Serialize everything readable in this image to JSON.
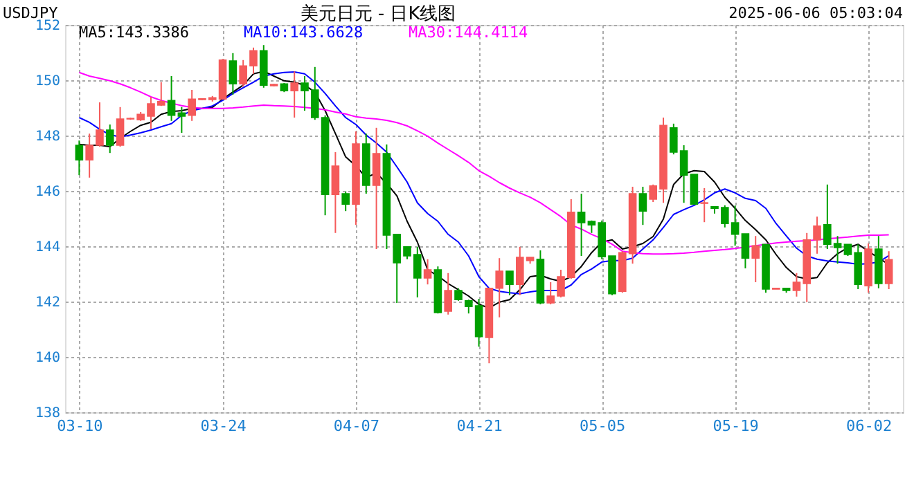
{
  "chart_data": {
    "type": "candlestick",
    "title": "USDJPY",
    "subtitle": "美元日元 - 日K线图",
    "annotations": [
      "2025-06-06 05:03:04"
    ],
    "categories": [
      "03-10",
      null,
      null,
      null,
      null,
      null,
      null,
      null,
      null,
      null,
      null,
      null,
      null,
      null,
      "03-24",
      null,
      null,
      null,
      null,
      null,
      null,
      null,
      null,
      null,
      null,
      null,
      null,
      "04-07",
      null,
      null,
      null,
      null,
      null,
      null,
      null,
      null,
      null,
      null,
      null,
      "04-21",
      null,
      null,
      null,
      null,
      null,
      null,
      null,
      null,
      null,
      null,
      null,
      "05-05",
      null,
      null,
      null,
      null,
      null,
      null,
      null,
      null,
      null,
      null,
      null,
      null,
      "05-19",
      null,
      null,
      null,
      null,
      null,
      null,
      null,
      null,
      null,
      null,
      null,
      null,
      "06-02",
      null,
      null
    ],
    "ohlc": [
      [
        147.65,
        147.82,
        146.57,
        147.12
      ],
      [
        147.12,
        148.07,
        146.48,
        147.65
      ],
      [
        147.65,
        149.2,
        147.6,
        148.2
      ],
      [
        148.2,
        148.4,
        147.37,
        147.65
      ],
      [
        147.65,
        149.03,
        147.6,
        148.6
      ],
      [
        148.6,
        148.65,
        148.57,
        148.62
      ],
      [
        148.57,
        148.85,
        148.53,
        148.77
      ],
      [
        148.7,
        149.4,
        148.23,
        149.15
      ],
      [
        149.1,
        149.93,
        149.07,
        149.23
      ],
      [
        149.27,
        150.15,
        148.53,
        148.73
      ],
      [
        148.82,
        149.03,
        148.1,
        148.7
      ],
      [
        148.73,
        149.65,
        148.53,
        149.32
      ],
      [
        149.3,
        149.35,
        149.28,
        149.33
      ],
      [
        149.3,
        149.43,
        149.23,
        149.37
      ],
      [
        149.32,
        150.77,
        149.3,
        150.73
      ],
      [
        150.7,
        150.98,
        149.48,
        149.87
      ],
      [
        149.87,
        150.73,
        149.77,
        150.52
      ],
      [
        150.52,
        151.18,
        150.23,
        151.07
      ],
      [
        151.07,
        151.27,
        149.73,
        149.82
      ],
      [
        149.8,
        149.87,
        149.78,
        149.85
      ],
      [
        149.87,
        149.9,
        149.57,
        149.62
      ],
      [
        149.62,
        150.32,
        148.65,
        149.9
      ],
      [
        149.9,
        150.15,
        148.9,
        149.62
      ],
      [
        149.65,
        150.48,
        148.57,
        148.65
      ],
      [
        148.65,
        148.73,
        145.12,
        145.87
      ],
      [
        145.87,
        147.4,
        144.48,
        146.9
      ],
      [
        145.9,
        145.98,
        145.27,
        145.52
      ],
      [
        145.52,
        148.15,
        144.77,
        147.7
      ],
      [
        147.7,
        148.07,
        145.9,
        146.2
      ],
      [
        146.2,
        148.28,
        143.9,
        147.35
      ],
      [
        147.35,
        147.68,
        143.9,
        144.4
      ],
      [
        144.43,
        144.43,
        141.95,
        143.4
      ],
      [
        143.98,
        143.98,
        143.53,
        143.65
      ],
      [
        143.7,
        143.98,
        142.15,
        142.85
      ],
      [
        142.85,
        143.53,
        142.62,
        143.15
      ],
      [
        143.15,
        143.27,
        141.57,
        141.6
      ],
      [
        141.65,
        143.03,
        141.53,
        142.4
      ],
      [
        142.4,
        142.48,
        142.03,
        142.07
      ],
      [
        142.03,
        142.07,
        141.57,
        141.82
      ],
      [
        141.85,
        142.1,
        140.37,
        140.73
      ],
      [
        140.7,
        142.48,
        139.77,
        142.48
      ],
      [
        142.48,
        143.57,
        141.43,
        143.1
      ],
      [
        143.1,
        143.1,
        142.23,
        142.62
      ],
      [
        142.62,
        143.98,
        142.23,
        143.6
      ],
      [
        143.48,
        143.6,
        143.37,
        143.6
      ],
      [
        143.53,
        143.85,
        141.9,
        141.95
      ],
      [
        141.95,
        142.7,
        141.9,
        142.2
      ],
      [
        142.2,
        143.15,
        142.15,
        142.9
      ],
      [
        142.87,
        145.7,
        142.82,
        145.23
      ],
      [
        145.23,
        145.9,
        143.65,
        144.85
      ],
      [
        144.9,
        144.93,
        144.48,
        144.77
      ],
      [
        144.85,
        144.93,
        143.53,
        143.62
      ],
      [
        143.65,
        143.65,
        142.23,
        142.28
      ],
      [
        142.37,
        143.82,
        142.32,
        143.77
      ],
      [
        143.73,
        146.15,
        143.37,
        145.9
      ],
      [
        145.9,
        146.15,
        144.77,
        145.27
      ],
      [
        145.7,
        146.23,
        145.6,
        146.18
      ],
      [
        146.07,
        148.65,
        145.57,
        148.37
      ],
      [
        148.28,
        148.43,
        147.32,
        147.4
      ],
      [
        147.45,
        147.65,
        145.57,
        146.57
      ],
      [
        146.6,
        146.6,
        145.52,
        145.52
      ],
      [
        145.55,
        146.1,
        144.87,
        145.57
      ],
      [
        145.43,
        145.43,
        145.18,
        145.37
      ],
      [
        145.4,
        145.48,
        144.68,
        144.82
      ],
      [
        144.85,
        145.47,
        144.02,
        144.43
      ],
      [
        144.45,
        144.45,
        143.2,
        143.57
      ],
      [
        143.57,
        144.37,
        142.7,
        144.02
      ],
      [
        144.07,
        144.07,
        142.32,
        142.45
      ],
      [
        142.45,
        142.48,
        142.45,
        142.48
      ],
      [
        142.48,
        142.48,
        142.32,
        142.4
      ],
      [
        142.4,
        143.03,
        142.18,
        142.7
      ],
      [
        142.65,
        144.48,
        141.98,
        144.23
      ],
      [
        144.23,
        145.07,
        143.73,
        144.73
      ],
      [
        144.78,
        146.23,
        143.9,
        144.07
      ],
      [
        144.1,
        144.37,
        143.37,
        143.95
      ],
      [
        144.07,
        144.07,
        143.65,
        143.7
      ],
      [
        143.77,
        144.07,
        142.45,
        142.62
      ],
      [
        142.57,
        144.1,
        142.32,
        143.9
      ],
      [
        143.9,
        144.37,
        142.48,
        142.65
      ],
      [
        142.65,
        143.82,
        142.45,
        143.52
      ]
    ],
    "colors": [
      "#00a000",
      "#f55a5a",
      "#f55a5a",
      "#00a000",
      "#f55a5a",
      "#f55a5a",
      "#f55a5a",
      "#f55a5a",
      "#f55a5a",
      "#00a000",
      "#00a000",
      "#f55a5a",
      "#f55a5a",
      "#f55a5a",
      "#f55a5a",
      "#00a000",
      "#f55a5a",
      "#f55a5a",
      "#00a000",
      "#f55a5a",
      "#00a000",
      "#f55a5a",
      "#00a000",
      "#00a000",
      "#00a000",
      "#f55a5a",
      "#00a000",
      "#f55a5a",
      "#00a000",
      "#f55a5a",
      "#00a000",
      "#00a000",
      "#00a000",
      "#00a000",
      "#f55a5a",
      "#00a000",
      "#f55a5a",
      "#00a000",
      "#00a000",
      "#00a000",
      "#f55a5a",
      "#f55a5a",
      "#00a000",
      "#f55a5a",
      "#f55a5a",
      "#00a000",
      "#f55a5a",
      "#f55a5a",
      "#f55a5a",
      "#00a000",
      "#00a000",
      "#00a000",
      "#00a000",
      "#f55a5a",
      "#f55a5a",
      "#00a000",
      "#f55a5a",
      "#f55a5a",
      "#00a000",
      "#00a000",
      "#00a000",
      "#f55a5a",
      "#00a000",
      "#00a000",
      "#00a000",
      "#00a000",
      "#f55a5a",
      "#00a000",
      "#f55a5a",
      "#00a000",
      "#f55a5a",
      "#f55a5a",
      "#f55a5a",
      "#00a000",
      "#00a000",
      "#00a000",
      "#00a000",
      "#f55a5a",
      "#00a000",
      "#f55a5a"
    ],
    "series": [
      {
        "name": "MA5:143.3386",
        "type": "line",
        "color": "#000000",
        "values": [
          147.68,
          147.65,
          147.65,
          147.6,
          147.9,
          148.15,
          148.37,
          148.48,
          148.77,
          148.87,
          148.9,
          148.98,
          148.98,
          149.02,
          149.32,
          149.57,
          149.82,
          150.23,
          150.32,
          150.15,
          149.98,
          149.93,
          149.82,
          149.57,
          148.9,
          148.07,
          147.23,
          146.9,
          146.48,
          146.65,
          146.27,
          145.82,
          144.9,
          144.15,
          143.15,
          142.93,
          142.65,
          142.43,
          142.2,
          141.9,
          141.77,
          141.98,
          142.07,
          142.43,
          142.9,
          142.95,
          142.82,
          142.73,
          142.9,
          143.27,
          143.77,
          144.15,
          144.23,
          143.9,
          143.98,
          144.1,
          144.35,
          144.98,
          146.23,
          146.62,
          146.73,
          146.7,
          146.32,
          145.77,
          145.37,
          144.93,
          144.6,
          144.23,
          143.7,
          143.23,
          142.9,
          142.82,
          142.87,
          143.4,
          143.73,
          143.95,
          144.07,
          143.82,
          143.57,
          143.34
        ]
      },
      {
        "name": "MA10:143.6628",
        "type": "line",
        "color": "#0000ff",
        "values": [
          148.65,
          148.48,
          148.23,
          148.03,
          147.95,
          148.02,
          148.1,
          148.2,
          148.32,
          148.43,
          148.73,
          148.9,
          148.98,
          149.07,
          149.27,
          149.52,
          149.73,
          149.93,
          150.15,
          150.23,
          150.28,
          150.3,
          150.23,
          149.93,
          149.52,
          149.07,
          148.65,
          148.4,
          148.02,
          147.73,
          147.4,
          146.87,
          146.32,
          145.57,
          145.18,
          144.9,
          144.43,
          144.15,
          143.65,
          142.9,
          142.48,
          142.37,
          142.32,
          142.28,
          142.35,
          142.4,
          142.4,
          142.4,
          142.6,
          142.98,
          143.18,
          143.43,
          143.48,
          143.48,
          143.57,
          143.9,
          144.23,
          144.68,
          145.15,
          145.32,
          145.48,
          145.68,
          145.93,
          146.07,
          145.93,
          145.73,
          145.65,
          145.37,
          144.82,
          144.37,
          143.93,
          143.65,
          143.53,
          143.47,
          143.43,
          143.4,
          143.35,
          143.37,
          143.43,
          143.66
        ]
      },
      {
        "name": "MA30:144.4114",
        "type": "line",
        "color": "#ff00ff",
        "values": [
          150.28,
          150.15,
          150.07,
          149.98,
          149.87,
          149.73,
          149.57,
          149.4,
          149.27,
          149.17,
          149.08,
          149.02,
          148.98,
          148.98,
          148.98,
          149.0,
          149.03,
          149.07,
          149.1,
          149.08,
          149.07,
          149.05,
          149.02,
          148.98,
          148.93,
          148.85,
          148.78,
          148.68,
          148.63,
          148.6,
          148.55,
          148.47,
          148.35,
          148.17,
          147.98,
          147.73,
          147.5,
          147.27,
          147.03,
          146.73,
          146.53,
          146.3,
          146.1,
          145.93,
          145.77,
          145.57,
          145.32,
          145.07,
          144.77,
          144.62,
          144.43,
          144.27,
          144.07,
          143.82,
          143.77,
          143.73,
          143.72,
          143.72,
          143.73,
          143.75,
          143.78,
          143.82,
          143.85,
          143.88,
          143.92,
          143.97,
          144.02,
          144.07,
          144.12,
          144.15,
          144.18,
          144.2,
          144.23,
          144.27,
          144.3,
          144.33,
          144.37,
          144.4,
          144.4,
          144.41
        ]
      }
    ],
    "ylim": [
      138,
      152
    ],
    "yticks": [
      138,
      140,
      142,
      144,
      146,
      148,
      150,
      152
    ],
    "grid": true,
    "legend": "top"
  }
}
